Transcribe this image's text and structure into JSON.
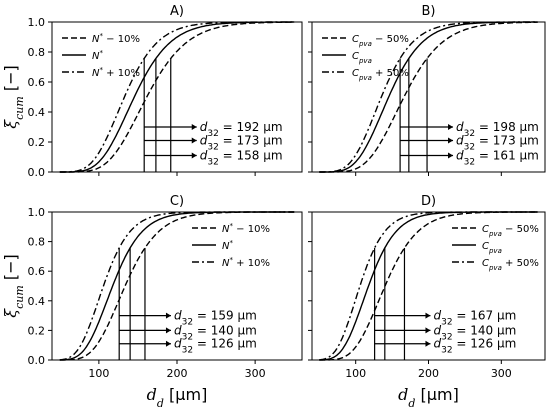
{
  "chart_data": [
    {
      "type": "line",
      "title": "A)",
      "xlabel": "",
      "ylabel": "ξcum [−]",
      "xlim": [
        40,
        360
      ],
      "ylim": [
        0,
        1.0
      ],
      "xticks": [],
      "yticks": [
        "0.0",
        "0.2",
        "0.4",
        "0.6",
        "0.8",
        "1.0"
      ],
      "legend": "top-left",
      "series": [
        {
          "name": "N* − 10%",
          "style": "dashed",
          "d32": 192
        },
        {
          "name": "N*",
          "style": "solid",
          "d32": 173
        },
        {
          "name": "N* + 10%",
          "style": "dashdot",
          "d32": 158
        }
      ],
      "annotations": [
        "d32 = 192 μm",
        "d32 = 173 μm",
        "d32 = 158 μm"
      ]
    },
    {
      "type": "line",
      "title": "B)",
      "xlabel": "",
      "ylabel": "",
      "xlim": [
        40,
        360
      ],
      "ylim": [
        0,
        1.0
      ],
      "xticks": [],
      "yticks": [],
      "legend": "top-left",
      "series": [
        {
          "name": "Cpva − 50%",
          "style": "dashed",
          "d32": 198
        },
        {
          "name": "Cpva",
          "style": "solid",
          "d32": 173
        },
        {
          "name": "Cpva + 50%",
          "style": "dashdot",
          "d32": 161
        }
      ],
      "annotations": [
        "d32 = 198 μm",
        "d32 = 173 μm",
        "d32 = 161 μm"
      ]
    },
    {
      "type": "line",
      "title": "C)",
      "xlabel": "dd [μm]",
      "ylabel": "ξcum [−]",
      "xlim": [
        40,
        360
      ],
      "ylim": [
        0,
        1.0
      ],
      "xticks": [
        "100",
        "200",
        "300"
      ],
      "yticks": [
        "0.0",
        "0.2",
        "0.4",
        "0.6",
        "0.8",
        "1.0"
      ],
      "legend": "top-right",
      "series": [
        {
          "name": "N* − 10%",
          "style": "dashed",
          "d32": 159
        },
        {
          "name": "N*",
          "style": "solid",
          "d32": 140
        },
        {
          "name": "N* + 10%",
          "style": "dashdot",
          "d32": 126
        }
      ],
      "annotations": [
        "d32 = 159 μm",
        "d32 = 140 μm",
        "d32 = 126 μm"
      ]
    },
    {
      "type": "line",
      "title": "D)",
      "xlabel": "dd [μm]",
      "ylabel": "",
      "xlim": [
        40,
        360
      ],
      "ylim": [
        0,
        1.0
      ],
      "xticks": [
        "100",
        "200",
        "300"
      ],
      "yticks": [],
      "legend": "top-right",
      "series": [
        {
          "name": "Cpva − 50%",
          "style": "dashed",
          "d32": 167
        },
        {
          "name": "Cpva",
          "style": "solid",
          "d32": 140
        },
        {
          "name": "Cpva + 50%",
          "style": "dashdot",
          "d32": 126
        }
      ],
      "annotations": [
        "d32 = 167 μm",
        "d32 = 140 μm",
        "d32 = 126 μm"
      ]
    }
  ]
}
